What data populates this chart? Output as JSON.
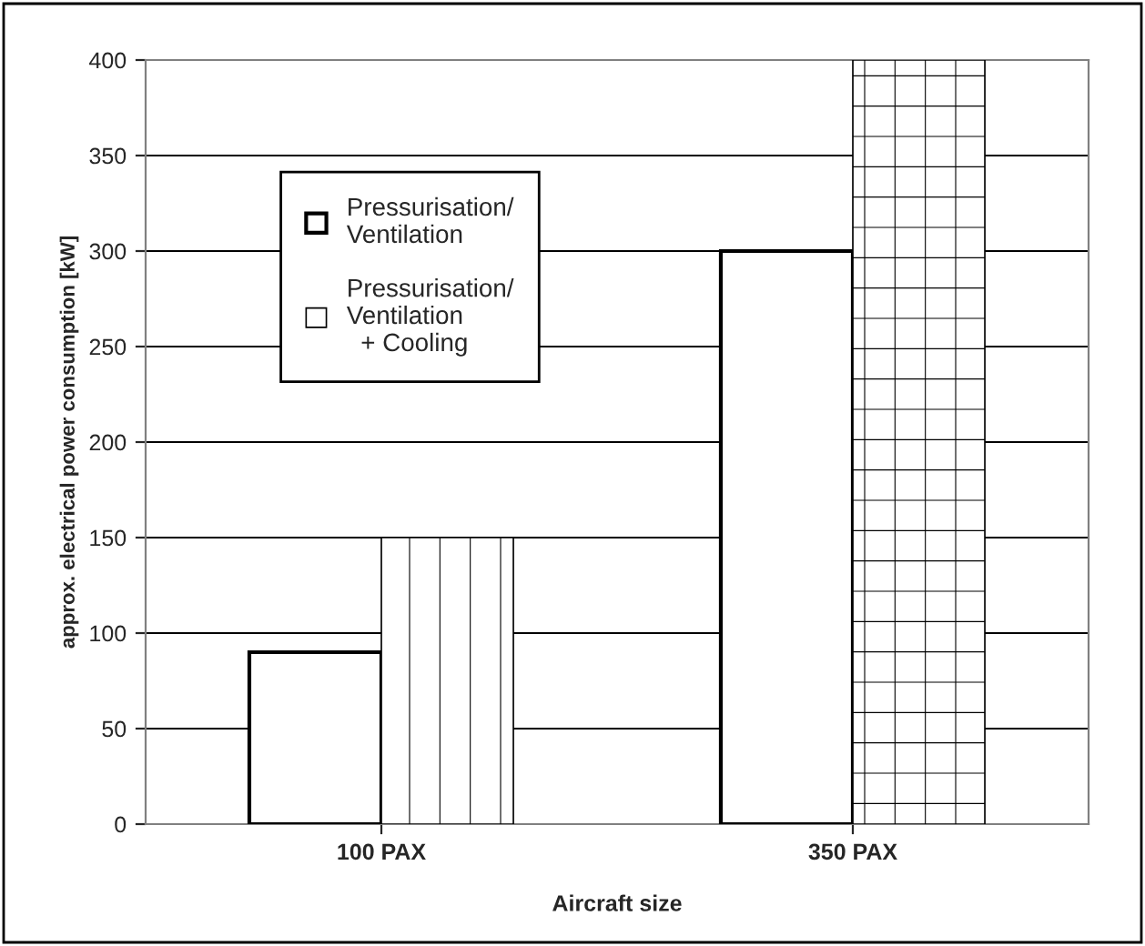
{
  "chart_data": {
    "type": "bar",
    "xlabel": "Aircraft size",
    "ylabel": "approx. electrical power consumption [kW]",
    "categories": [
      "100 PAX",
      "350 PAX"
    ],
    "series": [
      {
        "name": "Pressurisation/\nVentilation",
        "color": "#ffffff",
        "values": [
          90,
          300
        ]
      },
      {
        "name": "Pressurisation/\nVentilation\n  + Cooling",
        "color": "#ffffff",
        "values": [
          150,
          400
        ]
      }
    ],
    "ylim": [
      0,
      400
    ],
    "yticks": [
      0,
      50,
      100,
      150,
      200,
      250,
      300,
      350,
      400
    ],
    "grid": "y",
    "legend": "top left"
  }
}
